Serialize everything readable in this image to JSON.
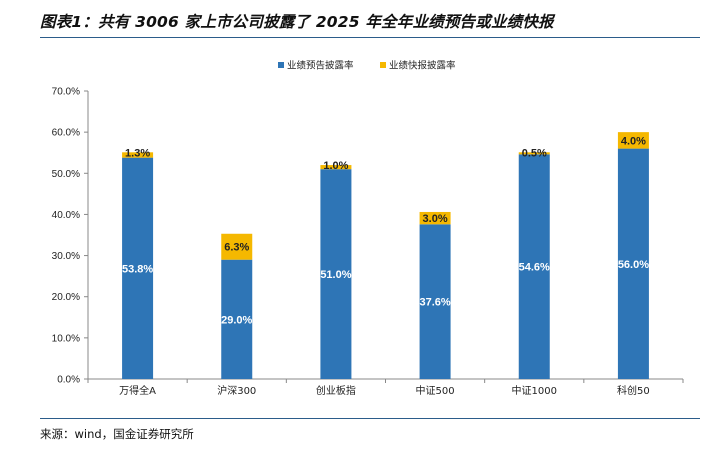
{
  "header": {
    "title": "图表1：共有 3006 家上市公司披露了 2025 年全年业绩预告或业绩快报"
  },
  "footer": {
    "source": "来源：wind，国金证券研究所"
  },
  "chart_data": {
    "type": "bar",
    "stacked": true,
    "categories": [
      "万得全A",
      "沪深300",
      "创业板指",
      "中证500",
      "中证1000",
      "科创50"
    ],
    "series": [
      {
        "name": "业绩预告披露率",
        "values": [
          53.8,
          29.0,
          51.0,
          37.6,
          54.6,
          56.0
        ],
        "labels": [
          "53.8%",
          "29.0%",
          "51.0%",
          "37.6%",
          "54.6%",
          "56.0%"
        ],
        "color": "#2e75b6"
      },
      {
        "name": "业绩快报披露率",
        "values": [
          1.3,
          6.3,
          1.0,
          3.0,
          0.5,
          4.0
        ],
        "labels": [
          "1.3%",
          "6.3%",
          "1.0%",
          "3.0%",
          "0.5%",
          "4.0%"
        ],
        "color": "#f5b800"
      }
    ],
    "ylim": [
      0,
      70
    ],
    "yticks": [
      "0.0%",
      "10.0%",
      "20.0%",
      "30.0%",
      "40.0%",
      "50.0%",
      "60.0%",
      "70.0%"
    ],
    "legend_position": "top-center",
    "grid": false
  }
}
